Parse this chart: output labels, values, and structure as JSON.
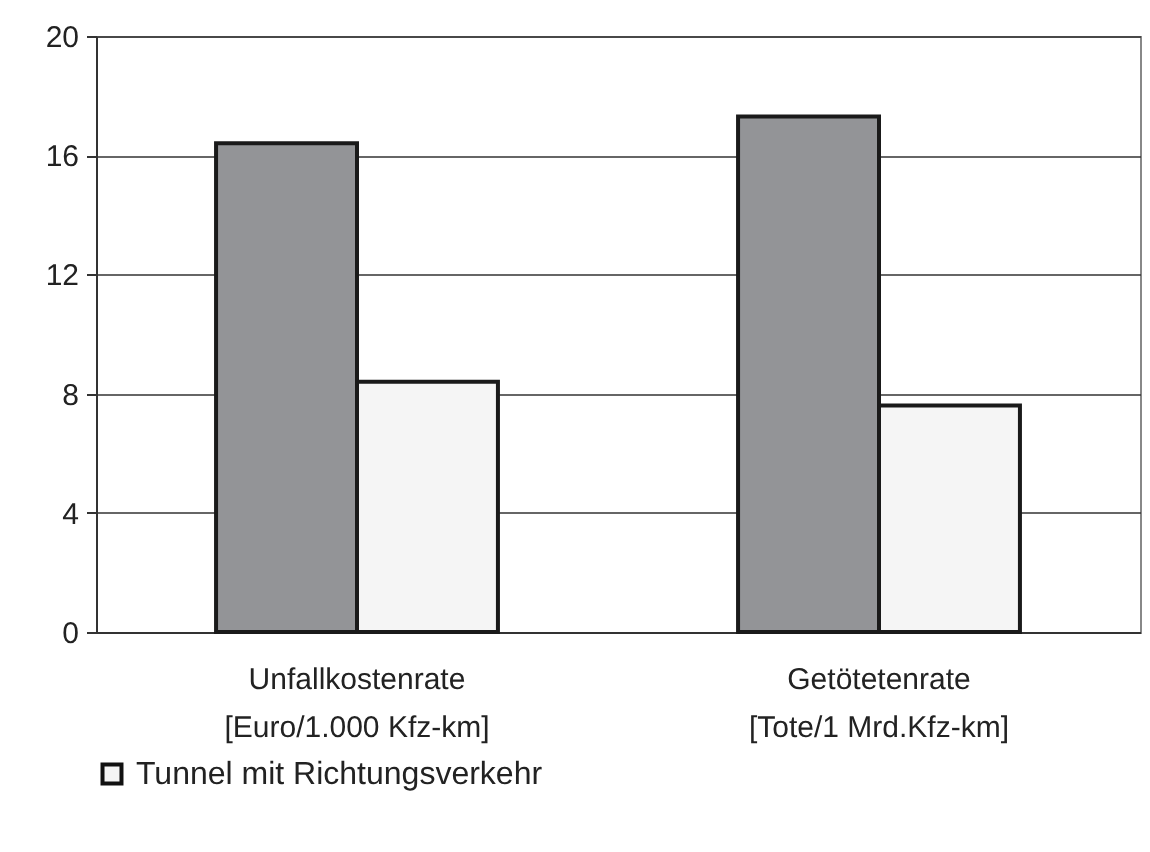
{
  "chart_data": {
    "type": "bar",
    "categories": [
      "Unfallkostenrate\n[Euro/1.000 Kfz-km]",
      "Getötetenrate\n[Tote/1 Mrd.Kfz-km]"
    ],
    "series": [
      {
        "color": "#939497",
        "values": [
          16.4,
          17.3
        ]
      },
      {
        "name": "Tunnel mit Richtungsverkehr",
        "color": "#f5f5f5",
        "values": [
          8.4,
          7.6
        ]
      }
    ],
    "ylim": [
      0,
      20
    ],
    "yticks": [
      0,
      4,
      8,
      12,
      16,
      20
    ],
    "grid": "y",
    "legend": "bottom"
  }
}
